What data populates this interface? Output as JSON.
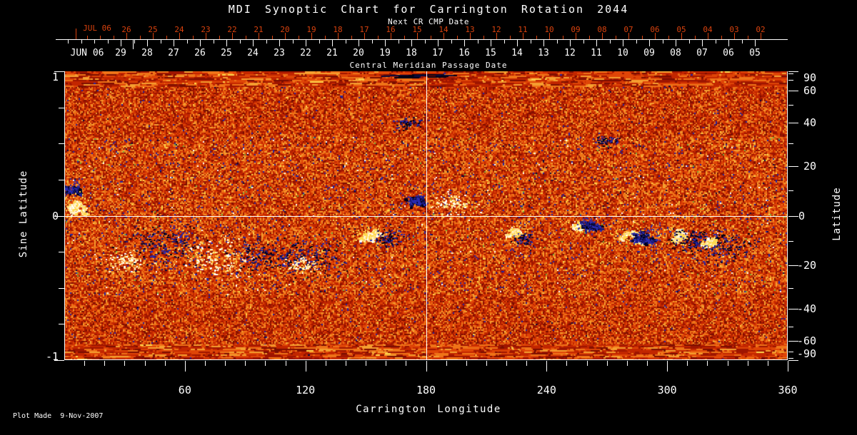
{
  "title": "MDI Synoptic Chart for Carrington Rotation 2044",
  "footer": {
    "plot_made": "Plot Made  9-Nov-2007"
  },
  "colors": {
    "background": "#000000",
    "axis_white": "#ffffff",
    "axis_red": "#d9420e"
  },
  "chart_data": {
    "type": "heatmap",
    "title": "MDI Synoptic Chart for Carrington Rotation 2044",
    "xlabel": "Carrington Longitude",
    "ylabel_left": "Sine Latitude",
    "ylabel_right": "Latitude",
    "xlim": [
      0,
      360
    ],
    "ylim": [
      -1,
      1
    ],
    "grid": {
      "vertical_line_at_longitude": 180,
      "horizontal_line_at_sine_latitude": 0
    },
    "x_tick_labels": [
      "60",
      "120",
      "180",
      "240",
      "300",
      "360"
    ],
    "x_tick_values": [
      60,
      120,
      180,
      240,
      300,
      360
    ],
    "x_minor_step": 10,
    "left_tick_labels": [
      "1",
      "0",
      "-1"
    ],
    "left_tick_values": [
      1,
      0,
      -1
    ],
    "left_minor_step": 0.25,
    "right_tick_labels": [
      "90",
      "60",
      "40",
      "20",
      "0",
      "-20",
      "-40",
      "-60",
      "-90"
    ],
    "right_tick_values": [
      90,
      60,
      40,
      20,
      0,
      -20,
      -40,
      -60,
      -90
    ],
    "right_minor_step_deg": 10,
    "top_axis": {
      "subtitle": "Next CR CMP Date",
      "axis_title": "Central Meridian Passage Date",
      "next_cr_month": "JUL 06",
      "next_cr_days": [
        "26",
        "25",
        "24",
        "23",
        "22",
        "21",
        "20",
        "19",
        "18",
        "17",
        "16",
        "15",
        "14",
        "13",
        "12",
        "11",
        "10",
        "09",
        "08",
        "07",
        "06",
        "05",
        "04",
        "03",
        "02"
      ],
      "current_month": "JUN 06",
      "current_days": [
        "29",
        "28",
        "27",
        "26",
        "25",
        "24",
        "23",
        "22",
        "21",
        "20",
        "19",
        "18",
        "17",
        "16",
        "15",
        "14",
        "13",
        "12",
        "11",
        "10",
        "09",
        "08",
        "07",
        "06",
        "05"
      ]
    },
    "colormap": {
      "description": "solar magnetogram: white/yellow = positive polarity, black/navy = negative polarity, orange-red noise = quiet sun",
      "background": [
        [
          "#7a0d00",
          6
        ],
        [
          "#9e1500",
          16
        ],
        [
          "#c22600",
          22
        ],
        [
          "#df4507",
          22
        ],
        [
          "#ef7418",
          18
        ],
        [
          "#f59f30",
          10
        ],
        [
          "#ffd84d",
          1.6
        ],
        [
          "#2323a2",
          2.2
        ],
        [
          "#07073f",
          0.6
        ],
        [
          "#ffffff",
          0.3
        ],
        [
          "#6fae3a",
          0.3
        ]
      ],
      "quiet_background": [
        [
          "#7a0d00",
          9
        ],
        [
          "#9e1500",
          20
        ],
        [
          "#c22600",
          24
        ],
        [
          "#df4507",
          22
        ],
        [
          "#ef7418",
          16
        ],
        [
          "#f59f30",
          8
        ],
        [
          "#ffd84d",
          0.5
        ],
        [
          "#2323a2",
          0.7
        ],
        [
          "#07073f",
          0.2
        ]
      ],
      "positive": [
        "#ffffff",
        "#fff3c8",
        "#ffe08a",
        "#ffd84d"
      ],
      "negative": [
        "#000014",
        "#0a0a3c",
        "#1a1a7a",
        "#2a2ab0"
      ]
    },
    "active_regions": [
      {
        "longitude": 3,
        "sine_latitude": 0.19,
        "polarity": "negative",
        "mode": "blob",
        "size": 9
      },
      {
        "longitude": 5,
        "sine_latitude": 0.07,
        "polarity": "positive",
        "mode": "blob",
        "size": 13
      },
      {
        "longitude": 30,
        "sine_latitude": -0.31,
        "polarity": "positive",
        "mode": "speckle",
        "size": 10
      },
      {
        "longitude": 52,
        "sine_latitude": -0.2,
        "polarity": "negative",
        "mode": "speckle",
        "size": 22
      },
      {
        "longitude": 76,
        "sine_latitude": -0.29,
        "polarity": "positive",
        "mode": "speckle",
        "size": 20
      },
      {
        "longitude": 99,
        "sine_latitude": -0.27,
        "polarity": "negative",
        "mode": "speckle",
        "size": 18
      },
      {
        "longitude": 123,
        "sine_latitude": -0.29,
        "polarity": "negative",
        "mode": "speckle",
        "size": 16
      },
      {
        "longitude": 118,
        "sine_latitude": -0.34,
        "polarity": "positive",
        "mode": "speckle",
        "size": 8
      },
      {
        "longitude": 152,
        "sine_latitude": -0.13,
        "polarity": "positive",
        "mode": "blob",
        "size": 10
      },
      {
        "longitude": 162,
        "sine_latitude": -0.15,
        "polarity": "negative",
        "mode": "speckle",
        "size": 8
      },
      {
        "longitude": 174,
        "sine_latitude": 0.1,
        "polarity": "negative",
        "mode": "blob",
        "size": 8
      },
      {
        "longitude": 170,
        "sine_latitude": 0.64,
        "polarity": "negative",
        "mode": "speckle",
        "size": 7
      },
      {
        "longitude": 193,
        "sine_latitude": 0.08,
        "polarity": "positive",
        "mode": "speckle",
        "size": 12
      },
      {
        "longitude": 223,
        "sine_latitude": -0.12,
        "polarity": "positive",
        "mode": "blob",
        "size": 7
      },
      {
        "longitude": 228,
        "sine_latitude": -0.16,
        "polarity": "negative",
        "mode": "speckle",
        "size": 6
      },
      {
        "longitude": 256,
        "sine_latitude": -0.07,
        "polarity": "positive",
        "mode": "blob",
        "size": 6
      },
      {
        "longitude": 262,
        "sine_latitude": -0.05,
        "polarity": "negative",
        "mode": "blob",
        "size": 9
      },
      {
        "longitude": 270,
        "sine_latitude": 0.52,
        "polarity": "negative",
        "mode": "speckle",
        "size": 6
      },
      {
        "longitude": 282,
        "sine_latitude": -0.12,
        "polarity": "positive",
        "mode": "blob",
        "size": 14
      },
      {
        "longitude": 290,
        "sine_latitude": -0.13,
        "polarity": "negative",
        "mode": "blob",
        "size": 13
      },
      {
        "longitude": 304,
        "sine_latitude": -0.14,
        "polarity": "positive",
        "mode": "blob",
        "size": 9
      },
      {
        "longitude": 312,
        "sine_latitude": -0.17,
        "polarity": "negative",
        "mode": "speckle",
        "size": 12
      },
      {
        "longitude": 326,
        "sine_latitude": -0.21,
        "polarity": "negative",
        "mode": "speckle",
        "size": 16
      },
      {
        "longitude": 320,
        "sine_latitude": -0.18,
        "polarity": "positive",
        "mode": "blob",
        "size": 6
      },
      {
        "longitude": 170,
        "sine_latitude": 0.97,
        "polarity": "negative",
        "mode": "streak",
        "size": 20
      }
    ]
  }
}
